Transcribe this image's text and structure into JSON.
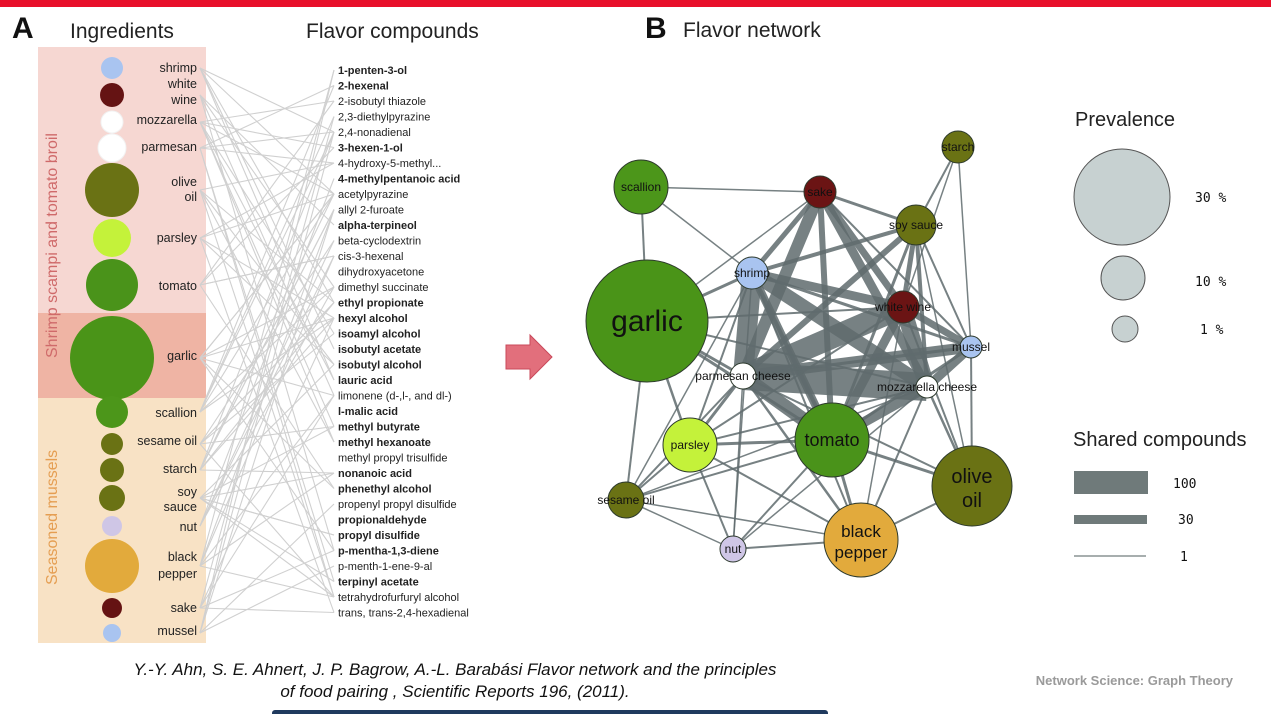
{
  "panel_a": {
    "letter": "A",
    "ingredients_header": "Ingredients",
    "compounds_header": "Flavor compounds",
    "group1_label": "Shrimp scampi and tomato broil",
    "group2_label": "Seasoned mussels",
    "ingredients": [
      {
        "label": "shrimp",
        "color": "#a9c4f0"
      },
      {
        "label": "white",
        "color": "#651313"
      },
      {
        "label": "wine",
        "color": ""
      },
      {
        "label": "mozzarella",
        "color": "#ffffff"
      },
      {
        "label": "parmesan",
        "color": "#ffffff"
      },
      {
        "label": "olive",
        "color": "#6a7214"
      },
      {
        "label": "oil",
        "color": ""
      },
      {
        "label": "parsley",
        "color": "#c4f23a"
      },
      {
        "label": "tomato",
        "color": "#4a931a"
      },
      {
        "label": "garlic",
        "color": "#4a9418"
      },
      {
        "label": "scallion",
        "color": "#4c961a"
      },
      {
        "label": "sesame oil",
        "color": "#6a7214"
      },
      {
        "label": "starch",
        "color": "#6a7214"
      },
      {
        "label": "soy",
        "color": "#6a7214"
      },
      {
        "label": "sauce",
        "color": ""
      },
      {
        "label": "nut",
        "color": "#cfc6e6"
      },
      {
        "label": "black",
        "color": "#e2aa3c"
      },
      {
        "label": "pepper",
        "color": ""
      },
      {
        "label": "sake",
        "color": "#651313"
      },
      {
        "label": "mussel",
        "color": "#a9c4f0"
      }
    ],
    "compounds": [
      {
        "name": "1-penten-3-ol",
        "bold": true
      },
      {
        "name": "2-hexenal",
        "bold": true
      },
      {
        "name": "2-isobutyl thiazole",
        "bold": false
      },
      {
        "name": "2,3-diethylpyrazine",
        "bold": false
      },
      {
        "name": "2,4-nonadienal",
        "bold": false
      },
      {
        "name": "3-hexen-1-ol",
        "bold": true
      },
      {
        "name": "4-hydroxy-5-methyl...",
        "bold": false
      },
      {
        "name": "4-methylpentanoic acid",
        "bold": true
      },
      {
        "name": "acetylpyrazine",
        "bold": false
      },
      {
        "name": "allyl 2-furoate",
        "bold": false
      },
      {
        "name": "alpha-terpineol",
        "bold": true
      },
      {
        "name": "beta-cyclodextrin",
        "bold": false
      },
      {
        "name": "cis-3-hexenal",
        "bold": false
      },
      {
        "name": "dihydroxyacetone",
        "bold": false
      },
      {
        "name": "dimethyl succinate",
        "bold": false
      },
      {
        "name": "ethyl propionate",
        "bold": true
      },
      {
        "name": "hexyl alcohol",
        "bold": true
      },
      {
        "name": "isoamyl alcohol",
        "bold": true
      },
      {
        "name": "isobutyl acetate",
        "bold": true
      },
      {
        "name": "isobutyl alcohol",
        "bold": true
      },
      {
        "name": "lauric acid",
        "bold": true
      },
      {
        "name": "limonene (d-,l-, and dl-)",
        "bold": false
      },
      {
        "name": "l-malic acid",
        "bold": true
      },
      {
        "name": "methyl butyrate",
        "bold": true
      },
      {
        "name": "methyl hexanoate",
        "bold": true
      },
      {
        "name": "methyl propyl trisulfide",
        "bold": false
      },
      {
        "name": "nonanoic acid",
        "bold": true
      },
      {
        "name": "phenethyl alcohol",
        "bold": true
      },
      {
        "name": "propenyl propyl disulfide",
        "bold": false
      },
      {
        "name": "propionaldehyde",
        "bold": true
      },
      {
        "name": "propyl disulfide",
        "bold": true
      },
      {
        "name": "p-mentha-1,3-diene",
        "bold": true
      },
      {
        "name": "p-menth-1-ene-9-al",
        "bold": false
      },
      {
        "name": "terpinyl acetate",
        "bold": true
      },
      {
        "name": "tetrahydrofurfuryl alcohol",
        "bold": false
      },
      {
        "name": "trans, trans-2,4-hexadienal",
        "bold": false
      }
    ]
  },
  "panel_b": {
    "letter": "B",
    "title": "Flavor network",
    "nodes": [
      {
        "id": "garlic",
        "label": "garlic",
        "color": "#4a9418"
      },
      {
        "id": "scallion",
        "label": "scallion",
        "color": "#4c961a"
      },
      {
        "id": "sake",
        "label": "sake",
        "color": "#6b1414"
      },
      {
        "id": "starch",
        "label": "starch",
        "color": "#6a7214"
      },
      {
        "id": "soy_sauce",
        "label": "soy sauce",
        "color": "#6a7214"
      },
      {
        "id": "shrimp",
        "label": "shrimp",
        "color": "#a9c4f0"
      },
      {
        "id": "white_wine",
        "label": "white wine",
        "color": "#6b1414"
      },
      {
        "id": "mussel",
        "label": "mussel",
        "color": "#a9c4f0"
      },
      {
        "id": "parmesan",
        "label": "parmesan cheese",
        "color": "#ffffff"
      },
      {
        "id": "mozzarella",
        "label": "mozzarella cheese",
        "color": "#ffffff"
      },
      {
        "id": "tomato",
        "label": "tomato",
        "color": "#4a931a"
      },
      {
        "id": "parsley",
        "label": "parsley",
        "color": "#c4f23a"
      },
      {
        "id": "olive_oil",
        "label": "olive oil",
        "color": "#6a7214"
      },
      {
        "id": "sesame_oil",
        "label": "sesame oil",
        "color": "#6a7214"
      },
      {
        "id": "black_pepper",
        "label": "black pepper",
        "color": "#e2aa3c"
      },
      {
        "id": "nut",
        "label": "nut",
        "color": "#cfc6e6"
      }
    ],
    "prevalence": {
      "title": "Prevalence",
      "items": [
        "30 %",
        "10 %",
        "1 %"
      ]
    },
    "shared": {
      "title": "Shared compounds",
      "items": [
        "100",
        "30",
        "1"
      ]
    }
  },
  "caption": {
    "line1": "Y.-Y. Ahn, S. E. Ahnert, J. P. Bagrow, A.-L. Barabási ⁢Flavor network and the principles",
    "line2": "of food pairing , Scientific Reports 196, (2011)."
  },
  "footer": "Network Science: Graph Theory",
  "colors": {
    "accent_bar": "#e8102a",
    "edge": "#5f6b6d",
    "bipartite_edge": "#cfcfcf",
    "arrow": "#e26f7c"
  }
}
